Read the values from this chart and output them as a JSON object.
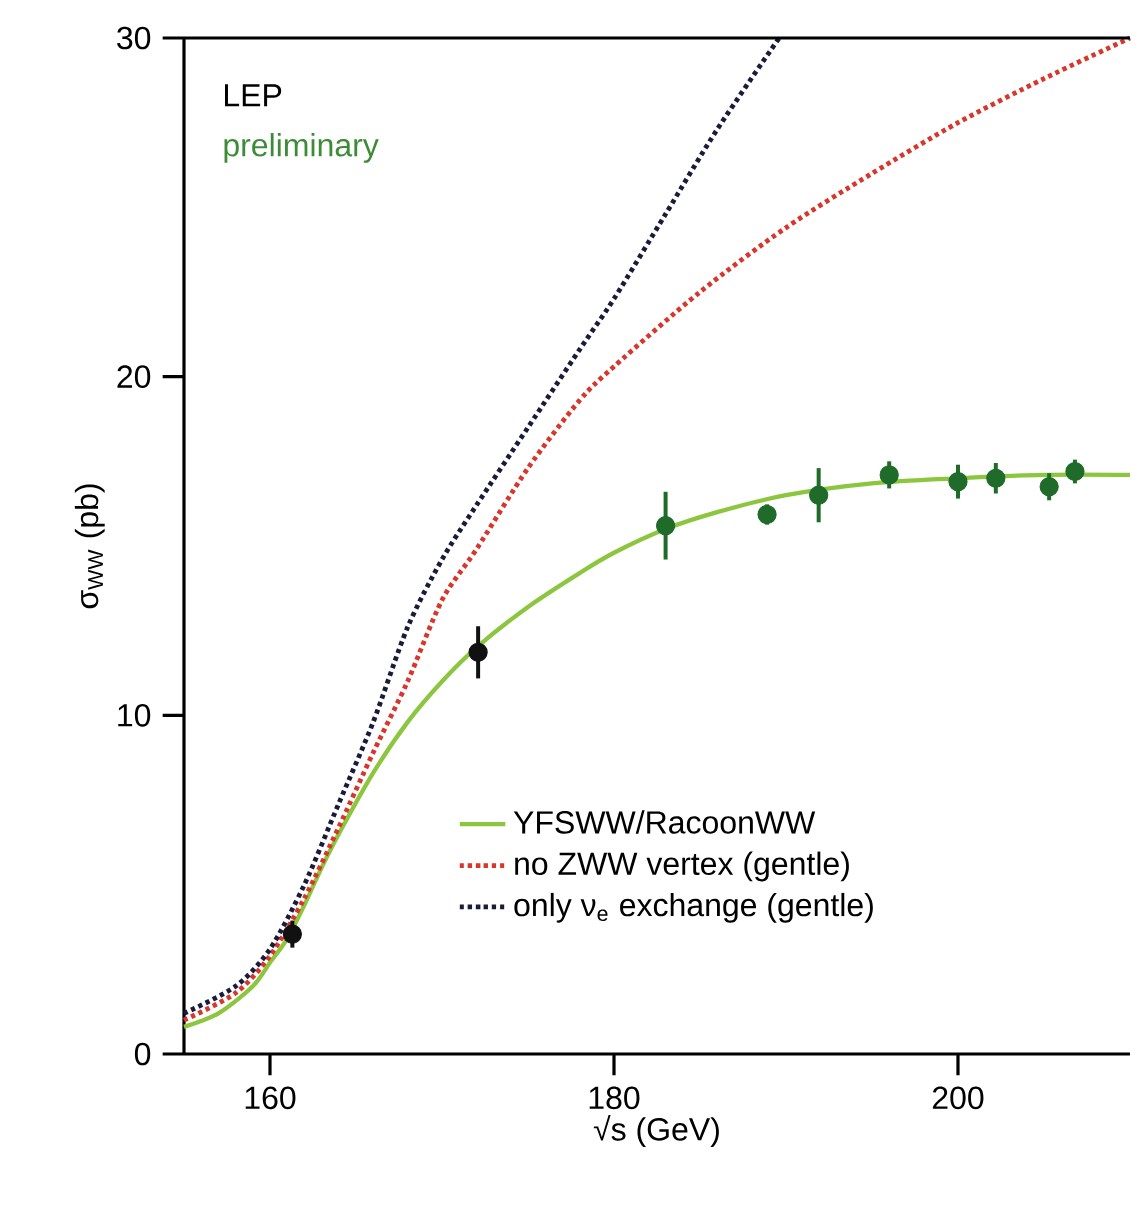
{
  "chart_data": {
    "type": "line",
    "xlabel": "√s (GeV)",
    "ylabel": "σ$_{WW}$ (pb)",
    "annotations": [
      "LEP",
      "preliminary"
    ],
    "xlim": [
      155,
      210
    ],
    "ylim": [
      0,
      30
    ],
    "xticks": [
      160,
      180,
      200
    ],
    "yticks": [
      0,
      10,
      20,
      30
    ],
    "grid": false,
    "legend": "bottom",
    "series": [
      {
        "type": "scatter",
        "marker": "circle",
        "x": [
          161.3,
          172.1,
          183.0,
          188.9,
          191.9,
          196.0,
          200.0,
          202.2,
          205.3,
          206.8
        ],
        "values": [
          3.54,
          11.86,
          15.6,
          15.93,
          16.5,
          17.1,
          16.9,
          17.0,
          16.75,
          17.2
        ],
        "errors": [
          0.4,
          0.77,
          1.0,
          0.3,
          0.8,
          0.4,
          0.5,
          0.45,
          0.4,
          0.35
        ],
        "colors": [
          "#111111",
          "#111111",
          "#1f6b2a",
          "#1f6b2a",
          "#1f6b2a",
          "#1f6b2a",
          "#1f6b2a",
          "#1f6b2a",
          "#1f6b2a",
          "#1f6b2a"
        ]
      },
      {
        "name": "YFSWW/RacoonWW",
        "marker": "none",
        "color": "#8cc63f",
        "line_style": "solid",
        "x": [
          155,
          157,
          159,
          160,
          161,
          162,
          163,
          164,
          166,
          168,
          170,
          172,
          175,
          178,
          180,
          183,
          186,
          190,
          195,
          200,
          205,
          210
        ],
        "values": [
          0.8,
          1.2,
          2.0,
          2.7,
          3.4,
          4.4,
          5.5,
          6.5,
          8.3,
          9.8,
          11.0,
          12.0,
          13.2,
          14.2,
          14.8,
          15.5,
          16.0,
          16.5,
          16.85,
          17.0,
          17.1,
          17.1
        ]
      },
      {
        "name": "no ZWW vertex (gentle)",
        "marker": "none",
        "color": "#d9352b",
        "line_style": "dotted",
        "x": [
          155,
          158,
          160,
          162,
          164,
          166,
          168,
          170,
          172,
          175,
          178,
          180,
          185,
          190,
          195,
          200,
          205,
          210
        ],
        "values": [
          1.0,
          1.8,
          2.9,
          4.6,
          6.7,
          8.9,
          11.0,
          13.4,
          14.9,
          17.3,
          19.3,
          20.3,
          22.5,
          24.4,
          26.0,
          27.5,
          28.8,
          30.0
        ]
      },
      {
        "name": "only ν$_{e}$ exchange (gentle)",
        "marker": "none",
        "color": "#1a1a3a",
        "line_style": "dotted",
        "x": [
          155,
          158,
          160,
          162,
          164,
          166,
          168,
          170,
          172,
          175,
          178,
          180,
          183,
          186,
          189.6
        ],
        "values": [
          1.2,
          2.0,
          3.1,
          5.0,
          7.4,
          9.8,
          12.6,
          14.6,
          16.2,
          18.5,
          20.8,
          22.3,
          24.8,
          27.3,
          30.0
        ]
      }
    ]
  }
}
